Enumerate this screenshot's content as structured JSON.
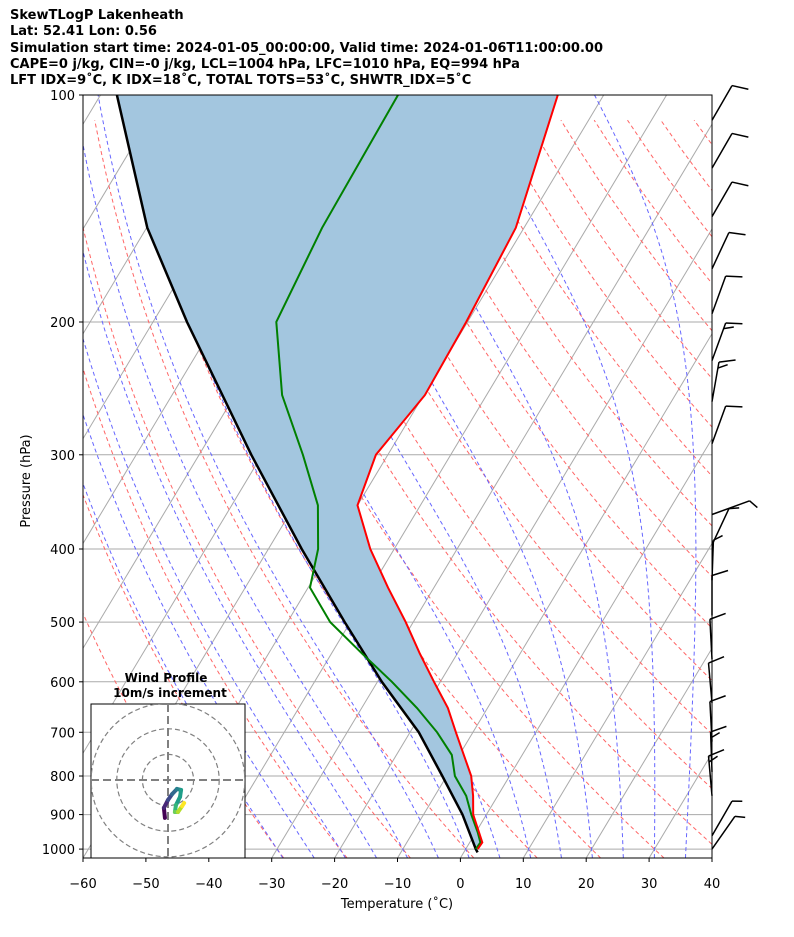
{
  "header": {
    "lines": [
      "SkewTLogP Lakenheath",
      "Lat: 52.41   Lon: 0.56",
      "Simulation start time: 2024-01-05_00:00:00, Valid time: 2024-01-06T11:00:00.00",
      "CAPE=0 j/kg, CIN=-0 j/kg, LCL=1004 hPa, LFC=1010 hPa, EQ=994 hPa",
      "LFT IDX=9˚C, K IDX=18˚C, TOTAL TOTS=53˚C, SHWTR_IDX=5˚C"
    ]
  },
  "chart_data": {
    "type": "line",
    "subtype": "skewt-logp",
    "xlabel": "Temperature (˚C)",
    "ylabel": "Pressure (hPa)",
    "xlim": [
      -60,
      40
    ],
    "ylim": [
      1028,
      100
    ],
    "xticks": [
      "−60",
      "−50",
      "−40",
      "−30",
      "−20",
      "−10",
      "0",
      "10",
      "20",
      "30",
      "40"
    ],
    "xtick_values": [
      -60,
      -50,
      -40,
      -30,
      -20,
      -10,
      0,
      10,
      20,
      30,
      40
    ],
    "yticks": [
      100,
      200,
      300,
      400,
      500,
      600,
      700,
      800,
      900,
      1000
    ],
    "grid": true,
    "colors": {
      "temperature": "#ff0000",
      "dewpoint": "#008000",
      "parcel": "#000000",
      "fill": "#a3c6df",
      "isotherm": "#aaaaaa",
      "dry_adiabat": "#ff6666",
      "moist_adiabat": "#6666ff"
    },
    "series": [
      {
        "name": "Temperature",
        "pressure": [
          100,
          150,
          200,
          250,
          300,
          350,
          400,
          450,
          500,
          550,
          600,
          650,
          700,
          750,
          800,
          850,
          900,
          950,
          980,
          1000
        ],
        "values": [
          -57.3,
          -51.3,
          -50.2,
          -49.8,
          -51.9,
          -50.0,
          -43.8,
          -37.3,
          -31.2,
          -26.0,
          -21.0,
          -16.3,
          -12.7,
          -9.3,
          -6.1,
          -3.9,
          -2.1,
          0.5,
          2.0,
          1.9
        ]
      },
      {
        "name": "Dewpoint",
        "pressure": [
          100,
          150,
          200,
          250,
          300,
          350,
          400,
          450,
          500,
          550,
          600,
          650,
          700,
          750,
          800,
          850,
          900,
          950,
          980,
          1000
        ],
        "values": [
          -82.7,
          -82.1,
          -80.4,
          -72.5,
          -63.5,
          -56.3,
          -52.1,
          -49.7,
          -43.2,
          -35.2,
          -27.7,
          -21.2,
          -15.7,
          -11.2,
          -8.7,
          -5.0,
          -2.4,
          0.3,
          1.7,
          1.6
        ]
      },
      {
        "name": "Parcel",
        "pressure": [
          100,
          150,
          200,
          300,
          400,
          500,
          600,
          700,
          800,
          900,
          1000,
          1010
        ],
        "values": [
          -127.4,
          -109.9,
          -94.6,
          -71.7,
          -54.7,
          -40.9,
          -29.3,
          -18.6,
          -10.7,
          -3.8,
          1.6,
          2.2
        ]
      }
    ],
    "dry_adiabats_C_at_1000": [
      -40,
      -30,
      -20,
      -10,
      0,
      10,
      20,
      30,
      40,
      50,
      60,
      70,
      80,
      90,
      100,
      110,
      120,
      130,
      140,
      150,
      160,
      170,
      180,
      190,
      200
    ],
    "moist_adiabats_C_at_1000": [
      -30,
      -25,
      -20,
      -15,
      -10,
      -5,
      0,
      5,
      10,
      15,
      20,
      25,
      30,
      35,
      40
    ],
    "wind_barbs": [
      {
        "p": 108,
        "dir": 330,
        "speed": 10
      },
      {
        "p": 125,
        "dir": 330,
        "speed": 10
      },
      {
        "p": 145,
        "dir": 330,
        "speed": 10
      },
      {
        "p": 170,
        "dir": 335,
        "speed": 10
      },
      {
        "p": 195,
        "dir": 340,
        "speed": 10
      },
      {
        "p": 225,
        "dir": 340,
        "speed": 15
      },
      {
        "p": 255,
        "dir": 350,
        "speed": 15
      },
      {
        "p": 290,
        "dir": 340,
        "speed": 10
      },
      {
        "p": 360,
        "dir": 290,
        "speed": 5
      },
      {
        "p": 395,
        "dir": 335,
        "speed": 5
      },
      {
        "p": 440,
        "dir": 358,
        "speed": 5
      },
      {
        "p": 490,
        "dir": 0,
        "speed": 10
      },
      {
        "p": 560,
        "dir": 3,
        "speed": 10
      },
      {
        "p": 640,
        "dir": 5,
        "speed": 10
      },
      {
        "p": 720,
        "dir": 3,
        "speed": 10
      },
      {
        "p": 790,
        "dir": 2,
        "speed": 15
      },
      {
        "p": 850,
        "dir": 5,
        "speed": 15
      },
      {
        "p": 960,
        "dir": 330,
        "speed": 5
      },
      {
        "p": 1000,
        "dir": 325,
        "speed": 5
      }
    ],
    "hodograph": {
      "title": "Wind Profile",
      "subtitle": "10m/s increment",
      "rings_ms": [
        10,
        20,
        30
      ],
      "u": [
        -1.2,
        -1.6,
        0,
        1.6,
        3.5,
        5.1,
        4.7,
        3.1,
        2.7,
        3.9,
        5.5,
        6.3
      ],
      "v": [
        -14.8,
        -10.9,
        -7.8,
        -5.5,
        -3.5,
        -3.9,
        -6.6,
        -9.8,
        -12.5,
        -12.5,
        -10.2,
        -9.0
      ]
    }
  }
}
